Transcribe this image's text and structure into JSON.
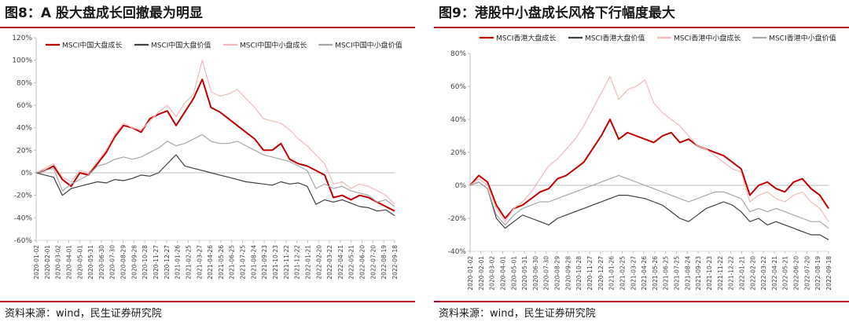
{
  "figures": [
    {
      "title": "图8：A 股大盘成长回撤最为明显",
      "source": "资料来源：wind，民生证券研究院"
    },
    {
      "title": "图9：港股中小盘成长风格下行幅度最大",
      "source": "资料来源：wind，民生证券研究院"
    }
  ],
  "colors": {
    "dark_red": "#c00000",
    "dark_gray": "#404040",
    "light_pink": "#f2b8b8",
    "light_gray": "#a6a6a6",
    "rule": "#b4001e"
  },
  "chart_data": [
    {
      "type": "line",
      "title": "图8：A 股大盘成长回撤最为明显",
      "xlabel": "",
      "ylabel": "",
      "ylim": [
        -60,
        120
      ],
      "yticks": [
        -60,
        -40,
        -20,
        0,
        20,
        40,
        60,
        80,
        100,
        120
      ],
      "ytick_labels": [
        "-60%",
        "-40%",
        "-20%",
        "0%",
        "20%",
        "40%",
        "60%",
        "80%",
        "100%",
        "120%"
      ],
      "x_ticks": [
        "2020-01-02",
        "2020-02-01",
        "2020-03-02",
        "2020-04-01",
        "2020-05-01",
        "2020-05-31",
        "2020-06-30",
        "2020-07-30",
        "2020-08-29",
        "2020-09-28",
        "2020-10-28",
        "2020-11-27",
        "2020-12-27",
        "2021-01-26",
        "2021-02-25",
        "2021-03-27",
        "2021-04-26",
        "2021-05-26",
        "2021-06-25",
        "2021-07-25",
        "2021-08-24",
        "2021-09-23",
        "2021-10-23",
        "2021-11-22",
        "2021-12-22",
        "2022-01-21",
        "2022-02-20",
        "2022-03-22",
        "2022-04-21",
        "2022-05-21",
        "2022-06-20",
        "2022-07-20",
        "2022-08-19",
        "2022-09-18"
      ],
      "legend_position": "top",
      "series": [
        {
          "name": "MSCI中国大盘成长",
          "color": "#c00000",
          "width": 2.0,
          "values": [
            0,
            2,
            6,
            -6,
            -12,
            0,
            -2,
            8,
            18,
            32,
            42,
            40,
            36,
            48,
            52,
            55,
            42,
            54,
            66,
            83,
            58,
            54,
            48,
            42,
            36,
            30,
            20,
            20,
            26,
            12,
            8,
            6,
            2,
            -2,
            -22,
            -20,
            -24,
            -20,
            -22,
            -26,
            -30,
            -34
          ]
        },
        {
          "name": "MSCI中国大盘价值",
          "color": "#404040",
          "width": 1.2,
          "values": [
            0,
            -2,
            -4,
            -20,
            -14,
            -12,
            -10,
            -8,
            -9,
            -6,
            -7,
            -5,
            -2,
            -3,
            0,
            8,
            16,
            6,
            4,
            2,
            0,
            -2,
            -4,
            -6,
            -8,
            -9,
            -10,
            -11,
            -8,
            -10,
            -9,
            -12,
            -28,
            -24,
            -26,
            -24,
            -27,
            -30,
            -31,
            -34,
            -33,
            -38
          ]
        },
        {
          "name": "MSCI中国中小盘成长",
          "color": "#f2b8b8",
          "width": 1.2,
          "values": [
            0,
            4,
            8,
            -4,
            -8,
            2,
            0,
            10,
            20,
            34,
            44,
            40,
            38,
            46,
            54,
            60,
            50,
            62,
            70,
            100,
            72,
            68,
            70,
            74,
            66,
            58,
            48,
            46,
            44,
            38,
            30,
            24,
            16,
            8,
            -10,
            -8,
            -14,
            -10,
            -12,
            -16,
            -20,
            -28
          ]
        },
        {
          "name": "MSCI中国中小盘价值",
          "color": "#a6a6a6",
          "width": 1.2,
          "values": [
            0,
            2,
            4,
            -16,
            -10,
            -6,
            -2,
            6,
            8,
            12,
            14,
            12,
            14,
            18,
            22,
            28,
            24,
            26,
            30,
            34,
            28,
            26,
            26,
            28,
            24,
            20,
            16,
            14,
            12,
            10,
            6,
            2,
            -14,
            -10,
            -14,
            -12,
            -16,
            -18,
            -20,
            -26,
            -24,
            -30
          ]
        }
      ]
    },
    {
      "type": "line",
      "title": "图9：港股中小盘成长风格下行幅度最大",
      "xlabel": "",
      "ylabel": "",
      "ylim": [
        -40,
        80
      ],
      "yticks": [
        -40,
        -20,
        0,
        20,
        40,
        60,
        80
      ],
      "ytick_labels": [
        "-40%",
        "-20%",
        "0%",
        "20%",
        "40%",
        "60%",
        "80%"
      ],
      "x_ticks": [
        "2020-01-02",
        "2020-02-01",
        "2020-03-02",
        "2020-04-01",
        "2020-05-01",
        "2020-05-31",
        "2020-06-30",
        "2020-07-30",
        "2020-08-29",
        "2020-09-28",
        "2020-10-28",
        "2020-11-27",
        "2020-12-27",
        "2021-01-26",
        "2021-02-25",
        "2021-03-27",
        "2021-04-26",
        "2021-05-26",
        "2021-06-25",
        "2021-07-25",
        "2021-08-24",
        "2021-09-23",
        "2021-10-23",
        "2021-11-22",
        "2021-12-22",
        "2022-01-21",
        "2022-02-20",
        "2022-03-22",
        "2022-04-21",
        "2022-05-21",
        "2022-06-20",
        "2022-07-20",
        "2022-08-19",
        "2022-09-18"
      ],
      "legend_position": "top",
      "series": [
        {
          "name": "MSCI香港大盘成长",
          "color": "#c00000",
          "width": 2.0,
          "values": [
            0,
            6,
            2,
            -12,
            -20,
            -14,
            -12,
            -8,
            -4,
            -2,
            4,
            6,
            10,
            14,
            22,
            30,
            40,
            28,
            32,
            30,
            28,
            26,
            30,
            32,
            26,
            28,
            24,
            22,
            20,
            18,
            14,
            10,
            -6,
            0,
            2,
            -2,
            -4,
            2,
            4,
            -2,
            -6,
            -14
          ]
        },
        {
          "name": "MSCI香港大盘价值",
          "color": "#404040",
          "width": 1.2,
          "values": [
            0,
            2,
            -2,
            -20,
            -26,
            -22,
            -18,
            -20,
            -22,
            -24,
            -20,
            -18,
            -16,
            -14,
            -12,
            -10,
            -8,
            -6,
            -6,
            -7,
            -8,
            -10,
            -12,
            -16,
            -20,
            -22,
            -18,
            -14,
            -12,
            -10,
            -12,
            -16,
            -22,
            -20,
            -24,
            -22,
            -24,
            -26,
            -28,
            -30,
            -30,
            -33
          ]
        },
        {
          "name": "MSCI香港中小盘成长",
          "color": "#f2b8b8",
          "width": 1.2,
          "values": [
            0,
            4,
            0,
            -14,
            -22,
            -14,
            -10,
            -4,
            4,
            12,
            16,
            22,
            28,
            36,
            46,
            56,
            66,
            52,
            58,
            60,
            64,
            50,
            44,
            40,
            36,
            30,
            24,
            22,
            18,
            14,
            10,
            8,
            -10,
            -6,
            -4,
            -8,
            -10,
            -6,
            -4,
            -10,
            -14,
            -22
          ]
        },
        {
          "name": "MSCI香港中小盘价值",
          "color": "#a6a6a6",
          "width": 1.2,
          "values": [
            0,
            2,
            -2,
            -18,
            -24,
            -18,
            -14,
            -12,
            -10,
            -10,
            -8,
            -6,
            -4,
            -2,
            0,
            2,
            4,
            6,
            4,
            2,
            0,
            -2,
            -4,
            -6,
            -8,
            -10,
            -8,
            -6,
            -4,
            -4,
            -6,
            -8,
            -16,
            -14,
            -16,
            -14,
            -16,
            -18,
            -20,
            -22,
            -22,
            -26
          ]
        }
      ]
    }
  ]
}
